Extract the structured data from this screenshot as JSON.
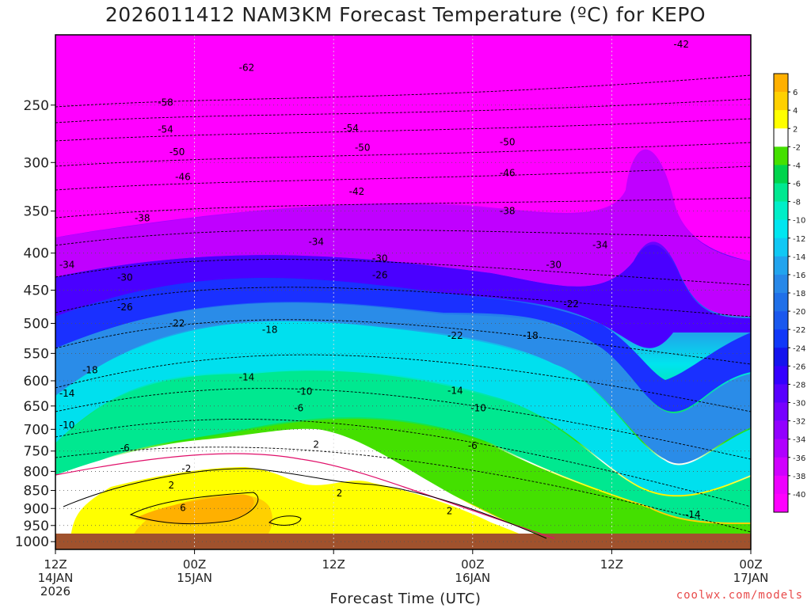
{
  "chart_data": {
    "type": "heatmap",
    "title": "2026011412 NAM3KM Forecast Temperature (ºC) for KEPO",
    "xlabel": "Forecast Time (UTC)",
    "ylabel": "",
    "y_axis": {
      "ticks": [
        "250",
        "300",
        "350",
        "400",
        "450",
        "500",
        "550",
        "600",
        "650",
        "700",
        "750",
        "800",
        "850",
        "900",
        "950",
        "1000"
      ],
      "range": [
        200,
        1025
      ],
      "inverted": true
    },
    "x_axis": {
      "ticks": [
        {
          "line1": "12Z",
          "line2": "14JAN",
          "line3": "2026"
        },
        {
          "line1": "00Z",
          "line2": "15JAN",
          "line3": ""
        },
        {
          "line1": "12Z",
          "line2": "",
          "line3": ""
        },
        {
          "line1": "00Z",
          "line2": "16JAN",
          "line3": ""
        },
        {
          "line1": "12Z",
          "line2": "",
          "line3": ""
        },
        {
          "line1": "00Z",
          "line2": "17JAN",
          "line3": ""
        }
      ],
      "range_hours": [
        0,
        60
      ]
    },
    "grid": true,
    "colorbar": {
      "placement": "right",
      "labels": [
        "6",
        "4",
        "2",
        "-2",
        "-4",
        "-6",
        "-8",
        "-10",
        "-12",
        "-14",
        "-16",
        "-18",
        "-20",
        "-22",
        "-24",
        "-26",
        "-28",
        "-30",
        "-32",
        "-34",
        "-36",
        "-38",
        "-40"
      ],
      "colors": [
        "#ffb000",
        "#ffd000",
        "#ffff00",
        "#ffffff",
        "#44e000",
        "#00d44c",
        "#00e890",
        "#00eec8",
        "#00e6f0",
        "#10c8f4",
        "#22a4ee",
        "#2888e8",
        "#2070e8",
        "#1a58ee",
        "#1038f8",
        "#1414ee",
        "#3400ff",
        "#5800ff",
        "#7600ff",
        "#9200ff",
        "#b000ff",
        "#d000ff",
        "#ee00ff",
        "#ff00ff"
      ]
    },
    "contours": [
      {
        "hour": 16.5,
        "pressure": 222,
        "label": "-62"
      },
      {
        "hour": 9.5,
        "pressure": 248,
        "label": "-58"
      },
      {
        "hour": 9.5,
        "pressure": 270,
        "label": "-54"
      },
      {
        "hour": 25.5,
        "pressure": 269,
        "label": "-54"
      },
      {
        "hour": 10.5,
        "pressure": 290,
        "label": "-50"
      },
      {
        "hour": 26.5,
        "pressure": 286,
        "label": "-50"
      },
      {
        "hour": 39.0,
        "pressure": 281,
        "label": "-50"
      },
      {
        "hour": 11.0,
        "pressure": 314,
        "label": "-46"
      },
      {
        "hour": 39.0,
        "pressure": 310,
        "label": "-46"
      },
      {
        "hour": 26.0,
        "pressure": 329,
        "label": "-42"
      },
      {
        "hour": 54.0,
        "pressure": 206,
        "label": "-42"
      },
      {
        "hour": 7.5,
        "pressure": 358,
        "label": "-38"
      },
      {
        "hour": 39.0,
        "pressure": 350,
        "label": "-38"
      },
      {
        "hour": 22.5,
        "pressure": 386,
        "label": "-34"
      },
      {
        "hour": 47.0,
        "pressure": 390,
        "label": "-34"
      },
      {
        "hour": 1.0,
        "pressure": 415,
        "label": "-34"
      },
      {
        "hour": 6.0,
        "pressure": 432,
        "label": "-30"
      },
      {
        "hour": 28.0,
        "pressure": 407,
        "label": "-30"
      },
      {
        "hour": 43.0,
        "pressure": 415,
        "label": "-30"
      },
      {
        "hour": 6.0,
        "pressure": 475,
        "label": "-26"
      },
      {
        "hour": 28.0,
        "pressure": 429,
        "label": "-26"
      },
      {
        "hour": 10.5,
        "pressure": 500,
        "label": "-22"
      },
      {
        "hour": 34.5,
        "pressure": 520,
        "label": "-22"
      },
      {
        "hour": 44.5,
        "pressure": 470,
        "label": "-22"
      },
      {
        "hour": 18.5,
        "pressure": 510,
        "label": "-18"
      },
      {
        "hour": 41.0,
        "pressure": 520,
        "label": "-18"
      },
      {
        "hour": 3.0,
        "pressure": 580,
        "label": "-18"
      },
      {
        "hour": 16.5,
        "pressure": 593,
        "label": "-14"
      },
      {
        "hour": 1.0,
        "pressure": 625,
        "label": "-14"
      },
      {
        "hour": 34.5,
        "pressure": 619,
        "label": "-14"
      },
      {
        "hour": 55.0,
        "pressure": 918,
        "label": "-14"
      },
      {
        "hour": 21.5,
        "pressure": 621,
        "label": "-10"
      },
      {
        "hour": 36.5,
        "pressure": 654,
        "label": "-10"
      },
      {
        "hour": 1.0,
        "pressure": 691,
        "label": "-10"
      },
      {
        "hour": 21.0,
        "pressure": 654,
        "label": "-6"
      },
      {
        "hour": 6.0,
        "pressure": 743,
        "label": "-6"
      },
      {
        "hour": 36.0,
        "pressure": 737,
        "label": "-6"
      },
      {
        "hour": 11.3,
        "pressure": 793,
        "label": "-2"
      },
      {
        "hour": 22.5,
        "pressure": 735,
        "label": "2"
      },
      {
        "hour": 10.0,
        "pressure": 836,
        "label": "2"
      },
      {
        "hour": 24.5,
        "pressure": 857,
        "label": "2"
      },
      {
        "hour": 34.0,
        "pressure": 907,
        "label": "2"
      },
      {
        "hour": 11.0,
        "pressure": 898,
        "label": "6"
      }
    ]
  }
}
